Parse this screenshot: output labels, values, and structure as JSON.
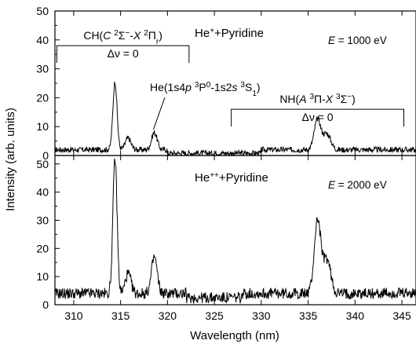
{
  "chart_data": [
    {
      "panel": "top",
      "type": "line",
      "xlim": [
        308,
        346.5
      ],
      "ylim": [
        0,
        50
      ],
      "yticks": [
        0,
        10,
        20,
        30,
        40,
        50
      ],
      "ytick_labels": [
        "0",
        "10",
        "20",
        "30",
        "40",
        "50"
      ],
      "grid": false,
      "title_parts": [
        {
          "text": "He",
          "sup": false
        },
        {
          "text": "+",
          "sup": true
        },
        {
          "text": "+Pyridine",
          "sup": false
        }
      ],
      "energy_parts": [
        {
          "text": "E",
          "italic": true
        },
        {
          "text": " = 1000 eV",
          "italic": false
        }
      ],
      "baseline": 2,
      "peaks": [
        {
          "x": 314.4,
          "y": 25.5,
          "w": 0.22
        },
        {
          "x": 315.8,
          "y": 6,
          "w": 0.3
        },
        {
          "x": 318.6,
          "y": 8,
          "w": 0.3
        },
        {
          "x": 336.0,
          "y": 12.5,
          "w": 0.35
        },
        {
          "x": 337.0,
          "y": 7.5,
          "w": 0.4
        }
      ],
      "annotations": [
        {
          "id": "ch-band",
          "label_parts": [
            {
              "text": "CH("
            },
            {
              "text": "C",
              "italic": true
            },
            {
              "text": " "
            },
            {
              "text": "2",
              "sup": true
            },
            {
              "text": "Σ"
            },
            {
              "text": "−",
              "sup": true
            },
            {
              "text": "-"
            },
            {
              "text": "X",
              "italic": true
            },
            {
              "text": " "
            },
            {
              "text": "2",
              "sup": true
            },
            {
              "text": "Π"
            },
            {
              "text": "r",
              "sub": true
            },
            {
              "text": ")"
            }
          ],
          "sublabel": "Δν = 0",
          "x_range": [
            308.2,
            322.3
          ],
          "y": 38
        },
        {
          "id": "nh-band",
          "label_parts": [
            {
              "text": "NH("
            },
            {
              "text": "A",
              "italic": true
            },
            {
              "text": " "
            },
            {
              "text": "3",
              "sup": true
            },
            {
              "text": "Π-"
            },
            {
              "text": "X",
              "italic": true
            },
            {
              "text": " "
            },
            {
              "text": "3",
              "sup": true
            },
            {
              "text": "Σ"
            },
            {
              "text": "−",
              "sup": true
            },
            {
              "text": ")"
            }
          ],
          "sublabel": "Δν = 0",
          "x_range": [
            326.8,
            345.2
          ],
          "y": 16
        },
        {
          "id": "he-line",
          "label_parts": [
            {
              "text": "He(1s4"
            },
            {
              "text": "p",
              "italic": true
            },
            {
              "text": " "
            },
            {
              "text": "3",
              "sup": true
            },
            {
              "text": "P"
            },
            {
              "text": "0",
              "sup": true
            },
            {
              "text": "-1s2"
            },
            {
              "text": "s",
              "italic": true
            },
            {
              "text": " "
            },
            {
              "text": "3",
              "sup": true
            },
            {
              "text": "S"
            },
            {
              "text": "1",
              "sub": true
            },
            {
              "text": ")"
            }
          ],
          "arrow_to": [
            318.5,
            9
          ]
        }
      ]
    },
    {
      "panel": "bottom",
      "type": "line",
      "xlim": [
        308,
        346.5
      ],
      "ylim": [
        0,
        53
      ],
      "yticks": [
        0,
        10,
        20,
        30,
        40,
        50
      ],
      "ytick_labels": [
        "0",
        "10",
        "20",
        "30",
        "40",
        "50"
      ],
      "grid": false,
      "title_parts": [
        {
          "text": "He",
          "sup": false
        },
        {
          "text": "++",
          "sup": true
        },
        {
          "text": "+Pyridine",
          "sup": false
        }
      ],
      "energy_parts": [
        {
          "text": "E",
          "italic": true
        },
        {
          "text": " = 2000 eV",
          "italic": false
        }
      ],
      "baseline": 4,
      "peaks": [
        {
          "x": 314.4,
          "y": 52,
          "w": 0.22
        },
        {
          "x": 315.8,
          "y": 11,
          "w": 0.3
        },
        {
          "x": 318.6,
          "y": 17,
          "w": 0.3
        },
        {
          "x": 336.0,
          "y": 30,
          "w": 0.35
        },
        {
          "x": 337.0,
          "y": 16,
          "w": 0.4
        }
      ]
    }
  ],
  "shared_axes": {
    "xticks": [
      310,
      315,
      320,
      325,
      330,
      335,
      340,
      345
    ],
    "xtick_labels": [
      "310",
      "315",
      "320",
      "325",
      "330",
      "335",
      "340",
      "345"
    ],
    "xlabel": "Wavelength (nm)",
    "ylabel": "Intensity (arb. units)"
  }
}
